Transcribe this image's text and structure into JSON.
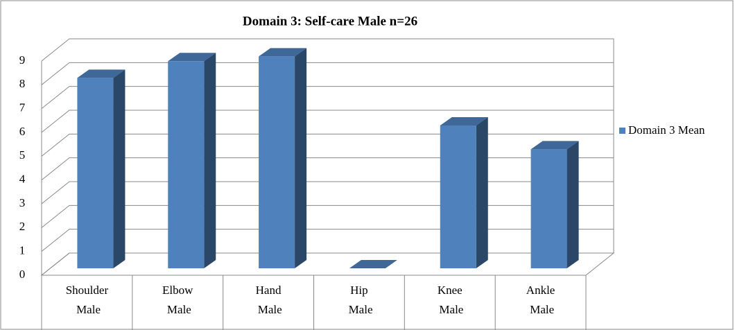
{
  "chart_data": {
    "type": "bar3d",
    "title": "Domain 3: Self-care Male n=26",
    "categories": [
      "Shoulder Male",
      "Elbow Male",
      "Hand Male",
      "Hip Male",
      "Knee Male",
      "Ankle Male"
    ],
    "series": [
      {
        "name": "Domain 3 Mean",
        "color": "#4f81bd",
        "values": [
          8,
          8.7,
          8.9,
          0,
          6,
          5
        ]
      }
    ],
    "ylim": [
      0,
      9
    ],
    "yticks": [
      0,
      1,
      2,
      3,
      4,
      5,
      6,
      7,
      8,
      9
    ],
    "grid": true,
    "legend": "right"
  }
}
